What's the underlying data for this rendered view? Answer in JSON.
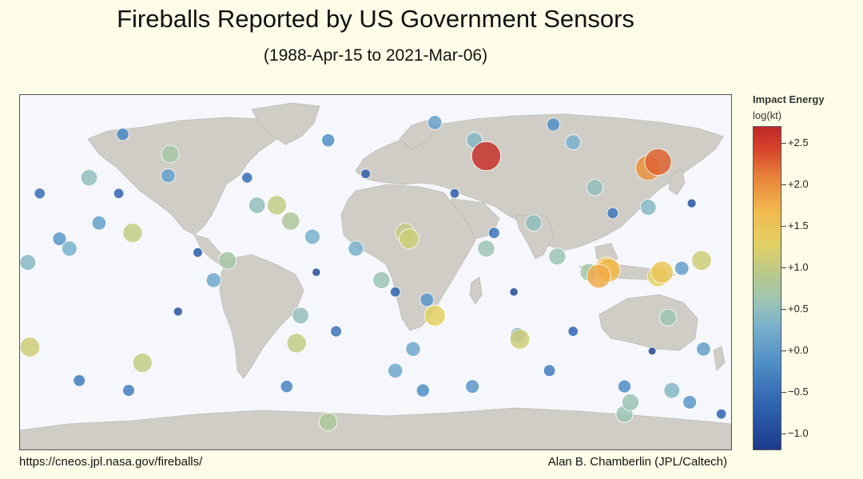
{
  "header": {
    "title": "Fireballs Reported by US Government Sensors",
    "subtitle": "(1988-Apr-15 to 2021-Mar-06)"
  },
  "footer": {
    "source_url": "https://cneos.jpl.nasa.gov/fireballs/",
    "credit": "Alan B. Chamberlin (JPL/Caltech)"
  },
  "colors": {
    "background": "#fefee8",
    "land": "#cfcdc6",
    "ocean": "#f6f7fc"
  },
  "chart_data": {
    "type": "scatter",
    "projection": "equirectangular world map",
    "title": "Fireballs Reported by US Government Sensors",
    "subtitle": "(1988-Apr-15 to 2021-Mar-06)",
    "colorbar": {
      "title": "Impact Energy",
      "subtitle": "log(kt)",
      "tick_labels": [
        "+2.5",
        "+2.0",
        "+1.5",
        "+1.0",
        "+0.5",
        "+0.0",
        "−0.5",
        "−1.0"
      ],
      "tick_values": [
        2.5,
        2.0,
        1.5,
        1.0,
        0.5,
        0.0,
        -0.5,
        -1.0
      ],
      "range": [
        -1.2,
        2.7
      ]
    },
    "points": [
      {
        "lon": 56,
        "lat": 59,
        "e": 2.6
      },
      {
        "lon": 143,
        "lat": 56,
        "e": 2.2
      },
      {
        "lon": 138,
        "lat": 53,
        "e": 1.9
      },
      {
        "lon": 113,
        "lat": -2,
        "e": 1.7
      },
      {
        "lon": 117,
        "lat": 2,
        "e": 1.5
      },
      {
        "lon": 118,
        "lat": 1,
        "e": 1.6
      },
      {
        "lon": 145,
        "lat": 0,
        "e": 1.4
      },
      {
        "lon": 165,
        "lat": 6,
        "e": 1.0
      },
      {
        "lon": 143,
        "lat": -2,
        "e": 1.2
      },
      {
        "lon": 30,
        "lat": -22,
        "e": 1.2
      },
      {
        "lon": 73,
        "lat": -34,
        "e": 1.0
      },
      {
        "lon": 17,
        "lat": 17,
        "e": 1.0
      },
      {
        "lon": 15,
        "lat": 20,
        "e": 0.9
      },
      {
        "lon": -175,
        "lat": -38,
        "e": 1.0
      },
      {
        "lon": -118,
        "lat": -46,
        "e": 0.9
      },
      {
        "lon": -123,
        "lat": 20,
        "e": 0.9
      },
      {
        "lon": -40,
        "lat": -36,
        "e": 0.9
      },
      {
        "lon": -50,
        "lat": 34,
        "e": 0.9
      },
      {
        "lon": -43,
        "lat": 26,
        "e": 0.7
      },
      {
        "lon": -24,
        "lat": -76,
        "e": 0.7
      },
      {
        "lon": -104,
        "lat": 60,
        "e": 0.6
      },
      {
        "lon": -75,
        "lat": 6,
        "e": 0.6
      },
      {
        "lon": 3,
        "lat": -4,
        "e": 0.5
      },
      {
        "lon": 108,
        "lat": 0,
        "e": 0.6
      },
      {
        "lon": 126,
        "lat": -72,
        "e": 0.5
      },
      {
        "lon": 129,
        "lat": -66,
        "e": 0.5
      },
      {
        "lon": 148,
        "lat": -23,
        "e": 0.5
      },
      {
        "lon": 92,
        "lat": 8,
        "e": 0.5
      },
      {
        "lon": 56,
        "lat": 12,
        "e": 0.5
      },
      {
        "lon": 80,
        "lat": 25,
        "e": 0.4
      },
      {
        "lon": 111,
        "lat": 43,
        "e": 0.4
      },
      {
        "lon": -60,
        "lat": 34,
        "e": 0.4
      },
      {
        "lon": -38,
        "lat": -22,
        "e": 0.4
      },
      {
        "lon": -176,
        "lat": 5,
        "e": 0.3
      },
      {
        "lon": -155,
        "lat": 12,
        "e": 0.2
      },
      {
        "lon": -145,
        "lat": 48,
        "e": 0.4
      },
      {
        "lon": -10,
        "lat": 12,
        "e": 0.2
      },
      {
        "lon": 50,
        "lat": 67,
        "e": 0.3
      },
      {
        "lon": 100,
        "lat": 66,
        "e": 0.2
      },
      {
        "lon": 138,
        "lat": 33,
        "e": 0.3
      },
      {
        "lon": 150,
        "lat": -60,
        "e": 0.3
      },
      {
        "lon": 10,
        "lat": -50,
        "e": 0.1
      },
      {
        "lon": -32,
        "lat": 18,
        "e": 0.2
      },
      {
        "lon": 72,
        "lat": -32,
        "e": 0.2
      },
      {
        "lon": 19,
        "lat": -39,
        "e": 0.1
      },
      {
        "lon": 155,
        "lat": 2,
        "e": 0.0
      },
      {
        "lon": -82,
        "lat": -4,
        "e": 0.1
      },
      {
        "lon": -105,
        "lat": 49,
        "e": 0.0
      },
      {
        "lon": -140,
        "lat": 25,
        "e": 0.0
      },
      {
        "lon": 166,
        "lat": -39,
        "e": 0.0
      },
      {
        "lon": 30,
        "lat": 76,
        "e": 0.0
      },
      {
        "lon": 49,
        "lat": -58,
        "e": -0.1
      },
      {
        "lon": -160,
        "lat": 17,
        "e": -0.1
      },
      {
        "lon": -24,
        "lat": 67,
        "e": -0.2
      },
      {
        "lon": 24,
        "lat": -60,
        "e": -0.2
      },
      {
        "lon": 126,
        "lat": -58,
        "e": -0.2
      },
      {
        "lon": 159,
        "lat": -66,
        "e": -0.1
      },
      {
        "lon": 90,
        "lat": 75,
        "e": -0.2
      },
      {
        "lon": 26,
        "lat": -14,
        "e": -0.1
      },
      {
        "lon": -128,
        "lat": 70,
        "e": -0.3
      },
      {
        "lon": -45,
        "lat": -58,
        "e": -0.3
      },
      {
        "lon": 88,
        "lat": -50,
        "e": -0.4
      },
      {
        "lon": -150,
        "lat": -55,
        "e": -0.4
      },
      {
        "lon": -125,
        "lat": -60,
        "e": -0.4
      },
      {
        "lon": -20,
        "lat": -30,
        "e": -0.5
      },
      {
        "lon": 60,
        "lat": 20,
        "e": -0.5
      },
      {
        "lon": 120,
        "lat": 30,
        "e": -0.5
      },
      {
        "lon": -65,
        "lat": 48,
        "e": -0.6
      },
      {
        "lon": -170,
        "lat": 40,
        "e": -0.6
      },
      {
        "lon": 100,
        "lat": -30,
        "e": -0.7
      },
      {
        "lon": 175,
        "lat": -72,
        "e": -0.7
      },
      {
        "lon": -5,
        "lat": 50,
        "e": -0.8
      },
      {
        "lon": 40,
        "lat": 40,
        "e": -0.8
      },
      {
        "lon": 160,
        "lat": 35,
        "e": -0.9
      },
      {
        "lon": -100,
        "lat": -20,
        "e": -0.9
      },
      {
        "lon": 70,
        "lat": -10,
        "e": -1.0
      },
      {
        "lon": -30,
        "lat": 0,
        "e": -1.0
      },
      {
        "lon": 140,
        "lat": -40,
        "e": -1.1
      },
      {
        "lon": -90,
        "lat": 10,
        "e": -0.8
      },
      {
        "lon": 10,
        "lat": -10,
        "e": -0.7
      },
      {
        "lon": -130,
        "lat": 40,
        "e": -0.7
      }
    ]
  }
}
